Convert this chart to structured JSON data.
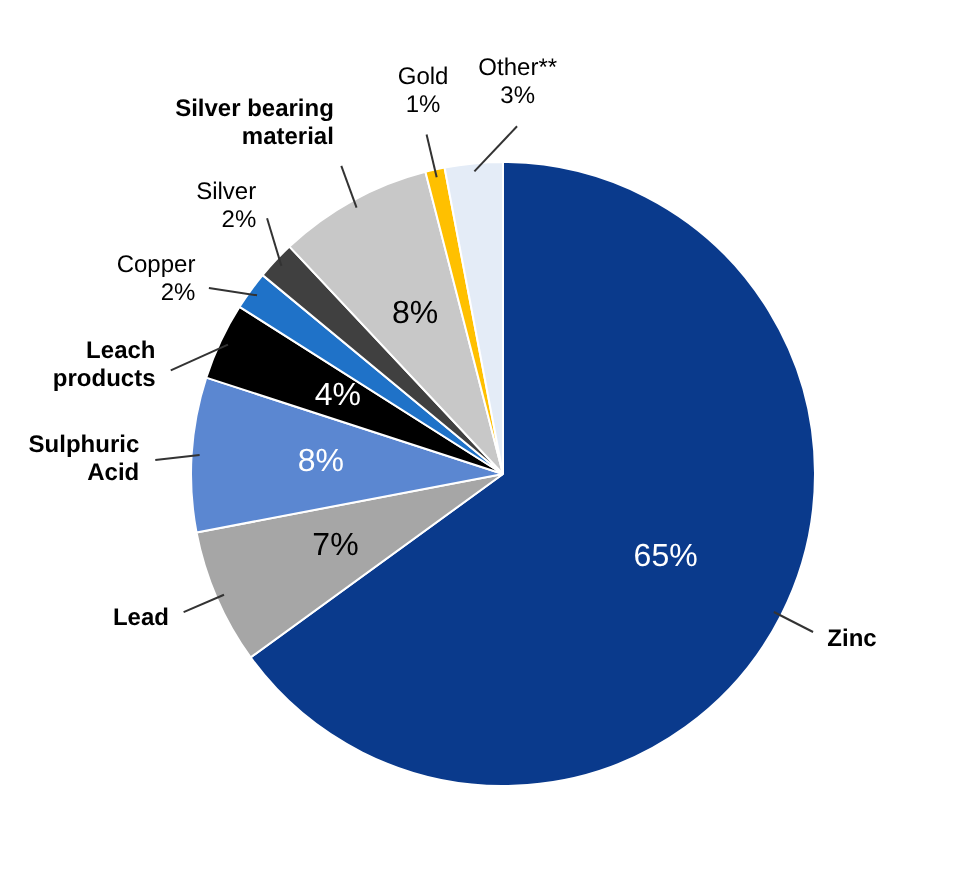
{
  "chart_data": {
    "type": "pie",
    "categories": [
      "Zinc",
      "Lead",
      "Sulphuric Acid",
      "Leach products",
      "Copper",
      "Silver",
      "Silver bearing material",
      "Gold",
      "Other**"
    ],
    "values": [
      65,
      7,
      8,
      4,
      2,
      2,
      8,
      1,
      3
    ],
    "value_labels": [
      "65%",
      "7%",
      "8%",
      "4%",
      "2%",
      "2%",
      "8%",
      "1%",
      "3%"
    ],
    "colors": [
      "#0a3a8c",
      "#a6a6a6",
      "#5b87d1",
      "#000000",
      "#1f72c8",
      "#404040",
      "#c8c8c8",
      "#ffc000",
      "#e4ecf7"
    ],
    "legend": false
  }
}
